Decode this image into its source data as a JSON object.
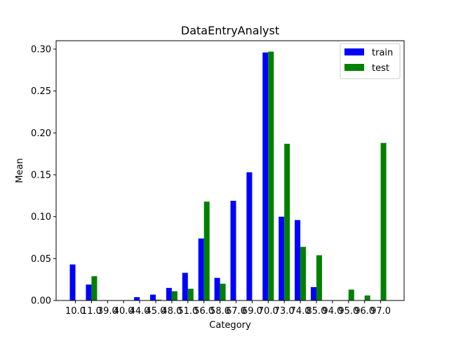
{
  "chart_data": {
    "type": "bar",
    "title": "DataEntryAnalyst",
    "xlabel": "Category",
    "ylabel": "Mean",
    "ylim": [
      0,
      0.31
    ],
    "yticks": [
      "0.00",
      "0.05",
      "0.10",
      "0.15",
      "0.20",
      "0.25",
      "0.30"
    ],
    "ytick_values": [
      0,
      0.05,
      0.1,
      0.15,
      0.2,
      0.25,
      0.3
    ],
    "grid": false,
    "legend_position": "top-right",
    "categories": [
      "10.0",
      "11.0",
      "39.0",
      "40.0",
      "44.0",
      "45.0",
      "48.0",
      "51.0",
      "56.0",
      "58.0",
      "67.0",
      "69.0",
      "70.0",
      "73.0",
      "74.0",
      "85.0",
      "94.0",
      "95.0",
      "96.0",
      "97.0"
    ],
    "series": [
      {
        "name": "train",
        "color": "#0000ff",
        "values": [
          0.043,
          0.019,
          0.0,
          0.0,
          0.004,
          0.007,
          0.015,
          0.033,
          0.074,
          0.027,
          0.119,
          0.153,
          0.296,
          0.1,
          0.096,
          0.016,
          0.0,
          0.0,
          0.0,
          0.0
        ]
      },
      {
        "name": "test",
        "color": "#008000",
        "values": [
          0.0,
          0.029,
          0.0,
          0.0,
          0.0,
          0.001,
          0.011,
          0.014,
          0.118,
          0.02,
          0.0,
          0.0,
          0.297,
          0.187,
          0.064,
          0.054,
          0.0,
          0.013,
          0.006,
          0.188
        ]
      }
    ]
  }
}
